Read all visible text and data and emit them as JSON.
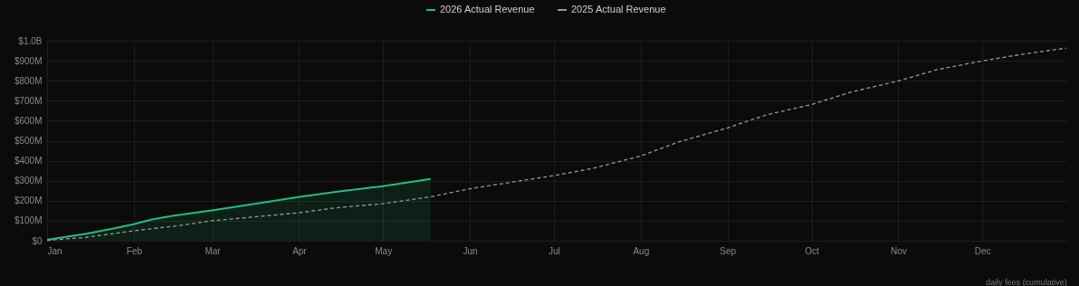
{
  "chart_data": {
    "type": "line",
    "series": [
      {
        "name": "2026 Actual Revenue",
        "type": "area",
        "color": "#22c07a",
        "line_style": "solid",
        "x": [
          "--01-01",
          "--01-15",
          "--01-25",
          "--02-01",
          "--02-07",
          "--02-15",
          "--03-01",
          "--03-15",
          "--04-01",
          "--04-15",
          "--05-01",
          "--05-18"
        ],
        "values": [
          5000000,
          35000000,
          62000000,
          83000000,
          105000000,
          125000000,
          152000000,
          182000000,
          219000000,
          246000000,
          273000000,
          309000000
        ]
      },
      {
        "name": "2025 Actual Revenue",
        "type": "line",
        "color": "#9a9a9a",
        "line_style": "dashed",
        "x": [
          "--01-01",
          "--01-15",
          "--02-01",
          "--02-15",
          "--03-01",
          "--04-01",
          "--04-15",
          "--05-01",
          "--05-18",
          "--06-01",
          "--07-01",
          "--07-15",
          "--08-01",
          "--08-15",
          "--09-01",
          "--09-15",
          "--10-01",
          "--10-15",
          "--11-01",
          "--11-15",
          "--12-01",
          "--12-15",
          "--12-31"
        ],
        "values": [
          2000000,
          17000000,
          50000000,
          72000000,
          100000000,
          140000000,
          166000000,
          185000000,
          220000000,
          260000000,
          326000000,
          362000000,
          424000000,
          496000000,
          564000000,
          630000000,
          681000000,
          743000000,
          799000000,
          856000000,
          899000000,
          932000000,
          963000000
        ]
      }
    ],
    "xlim": [
      "--01-01",
      "--12-31"
    ],
    "xticks": [
      {
        "value": "--01-01",
        "label": "Jan"
      },
      {
        "value": "--02-01",
        "label": "Feb"
      },
      {
        "value": "--03-01",
        "label": "Mar"
      },
      {
        "value": "--04-01",
        "label": "Apr"
      },
      {
        "value": "--05-01",
        "label": "May"
      },
      {
        "value": "--06-01",
        "label": "Jun"
      },
      {
        "value": "--07-01",
        "label": "Jul"
      },
      {
        "value": "--08-01",
        "label": "Aug"
      },
      {
        "value": "--09-01",
        "label": "Sep"
      },
      {
        "value": "--10-01",
        "label": "Oct"
      },
      {
        "value": "--11-01",
        "label": "Nov"
      },
      {
        "value": "--12-01",
        "label": "Dec"
      }
    ],
    "ylim": [
      0,
      1000000000
    ],
    "yticks": [
      {
        "value": 0,
        "label": "$0"
      },
      {
        "value": 100000000,
        "label": "$100M"
      },
      {
        "value": 200000000,
        "label": "$200M"
      },
      {
        "value": 300000000,
        "label": "$300M"
      },
      {
        "value": 400000000,
        "label": "$400M"
      },
      {
        "value": 500000000,
        "label": "$500M"
      },
      {
        "value": 600000000,
        "label": "$600M"
      },
      {
        "value": 700000000,
        "label": "$700M"
      },
      {
        "value": 800000000,
        "label": "$800M"
      },
      {
        "value": 900000000,
        "label": "$900M"
      },
      {
        "value": 1000000000,
        "label": "$1.0B"
      }
    ],
    "grid": true,
    "legend": "top",
    "annotations": [
      "daily fees (cumulative)"
    ]
  }
}
